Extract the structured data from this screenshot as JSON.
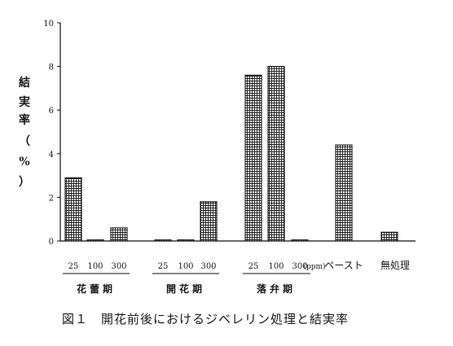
{
  "chart_data": {
    "type": "bar",
    "ylabel_chars": [
      "結",
      "実",
      "率",
      "（",
      "%",
      "）"
    ],
    "yticks": [
      "0",
      "2",
      "4",
      "6",
      "8",
      "10"
    ],
    "ylim": [
      0,
      10
    ],
    "unit_label": "(ppm)",
    "groups": [
      {
        "name": "花蕾期",
        "categories": [
          "25",
          "100",
          "300"
        ],
        "values": [
          2.9,
          0.05,
          0.6
        ]
      },
      {
        "name": "開花期",
        "categories": [
          "25",
          "100",
          "300"
        ],
        "values": [
          0.05,
          0.05,
          1.8
        ]
      },
      {
        "name": "落弁期",
        "categories": [
          "25",
          "100",
          "300"
        ],
        "values": [
          7.6,
          8.0,
          0.05
        ]
      },
      {
        "name": "ペースト",
        "categories": [],
        "values": [
          4.4
        ]
      },
      {
        "name": "無処理",
        "categories": [],
        "values": [
          0.4
        ]
      }
    ],
    "grid": false,
    "legend": "none"
  },
  "caption": "図１　開花前後におけるジベレリン処理と結実率"
}
